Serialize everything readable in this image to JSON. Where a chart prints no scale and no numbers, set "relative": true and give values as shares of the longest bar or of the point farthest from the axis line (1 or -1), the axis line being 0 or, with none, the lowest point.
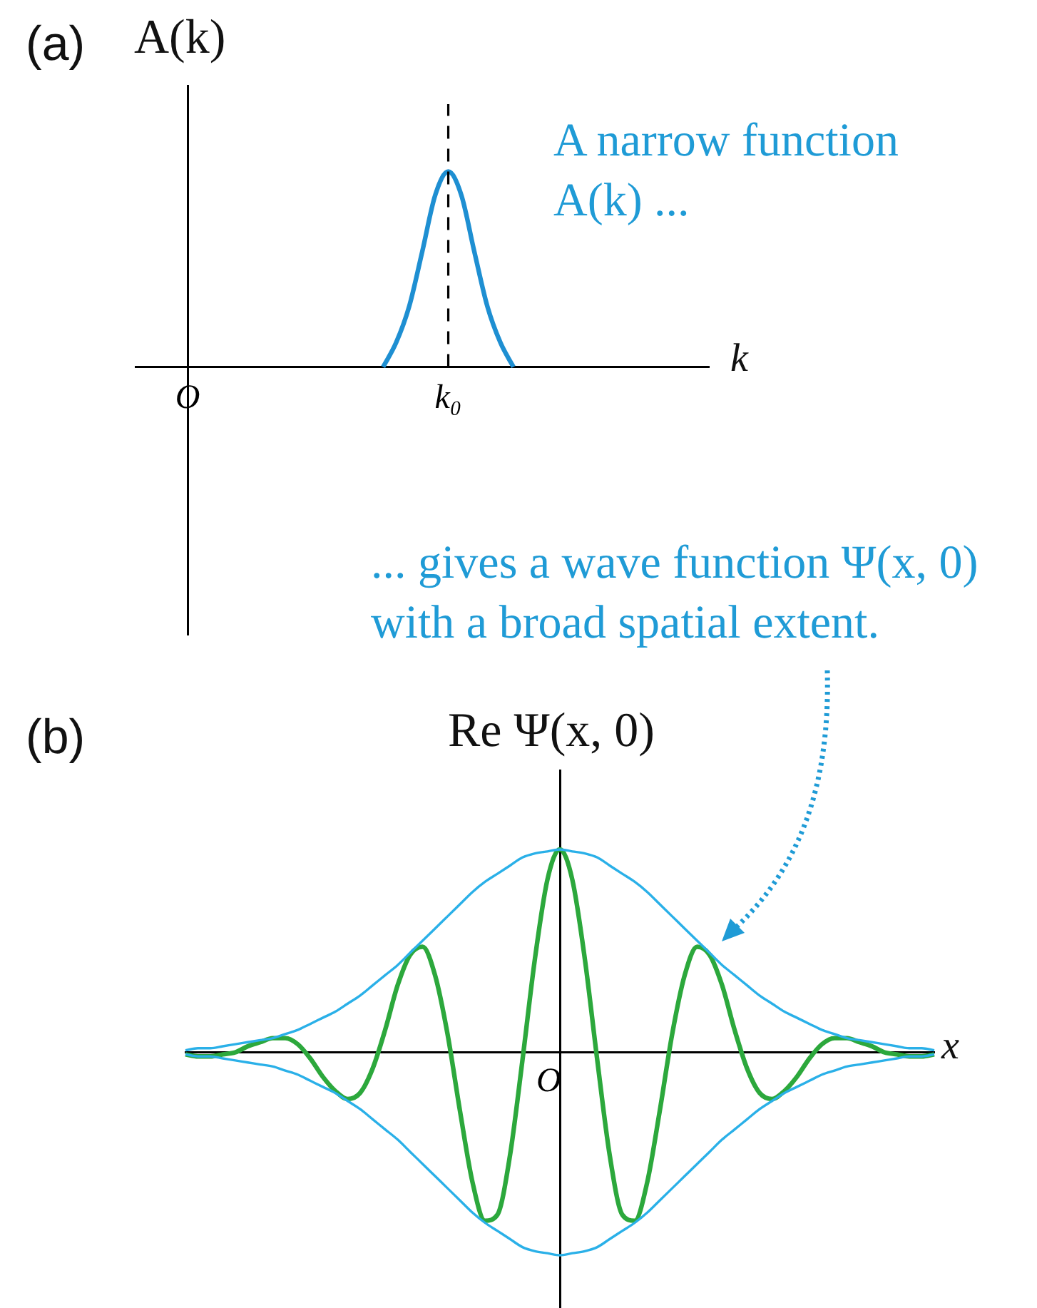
{
  "chart_data": [
    {
      "type": "line",
      "title": "(a)",
      "ylabel": "A(k)",
      "xlabel": "k",
      "relative": true,
      "legend": false,
      "grid": false,
      "marker": "none",
      "categories": [
        null,
        null,
        null,
        null,
        "O",
        null,
        null,
        null,
        null,
        null,
        null,
        null,
        null,
        null,
        null,
        null,
        null,
        null,
        null,
        null,
        null,
        null,
        null,
        null,
        "k₀",
        null,
        null,
        null,
        null,
        null,
        null,
        null,
        null,
        null,
        null,
        null,
        null,
        null,
        null,
        null,
        null,
        null,
        null,
        null,
        null
      ],
      "series": [
        {
          "color": "#1e8fd2",
          "values": [
            null,
            null,
            null,
            null,
            null,
            null,
            null,
            null,
            null,
            null,
            null,
            null,
            null,
            null,
            null,
            null,
            null,
            null,
            null,
            0,
            0.125,
            0.31,
            0.59,
            0.88,
            1,
            0.88,
            0.59,
            0.31,
            0.125,
            0,
            null,
            null,
            null,
            null,
            null,
            null,
            null,
            null,
            null,
            null,
            null,
            null,
            null,
            null,
            null
          ]
        }
      ],
      "ref_lines": [
        {
          "axis": "x",
          "value": "k₀",
          "color": "#000000",
          "line_style": "dashed"
        }
      ],
      "annotations": [
        "A narrow function A(k) ..."
      ]
    },
    {
      "type": "line",
      "title": "(b)",
      "ylabel": "Re Ψ(x, 0)",
      "xlabel": "x",
      "relative": true,
      "legend": false,
      "grid": false,
      "marker": "none",
      "categories": [
        null,
        null,
        null,
        null,
        null,
        null,
        null,
        null,
        null,
        null,
        null,
        null,
        null,
        null,
        null,
        null,
        null,
        null,
        null,
        null,
        null,
        null,
        null,
        null,
        null,
        null,
        null,
        null,
        null,
        null,
        null,
        null,
        null,
        null,
        null,
        null,
        null,
        null,
        null,
        null,
        null,
        null,
        null,
        null,
        null,
        null,
        null,
        null,
        null,
        null,
        null,
        null,
        null,
        null,
        null,
        null,
        null,
        null,
        null,
        null,
        null
      ],
      "series": [
        {
          "color": "#2ab0e8",
          "values": [
            0.01,
            0.02,
            0.02,
            0.03,
            0.04,
            0.05,
            0.06,
            0.07,
            0.09,
            0.11,
            0.14,
            0.17,
            0.2,
            0.24,
            0.28,
            0.33,
            0.38,
            0.43,
            0.49,
            0.55,
            0.61,
            0.67,
            0.73,
            0.79,
            0.84,
            0.88,
            0.92,
            0.96,
            0.98,
            0.99,
            1,
            0.99,
            0.98,
            0.96,
            0.92,
            0.88,
            0.84,
            0.79,
            0.73,
            0.67,
            0.61,
            0.55,
            0.49,
            0.43,
            0.38,
            0.33,
            0.28,
            0.24,
            0.2,
            0.17,
            0.14,
            0.11,
            0.09,
            0.07,
            0.06,
            0.05,
            0.04,
            0.03,
            0.02,
            0.02,
            0.01
          ]
        },
        {
          "color": "#2ab0e8",
          "values": [
            -0.01,
            -0.02,
            -0.02,
            -0.03,
            -0.04,
            -0.05,
            -0.06,
            -0.07,
            -0.09,
            -0.11,
            -0.14,
            -0.17,
            -0.2,
            -0.24,
            -0.28,
            -0.33,
            -0.38,
            -0.43,
            -0.49,
            -0.55,
            -0.61,
            -0.67,
            -0.73,
            -0.79,
            -0.84,
            -0.88,
            -0.92,
            -0.96,
            -0.98,
            -0.99,
            -1,
            -0.99,
            -0.98,
            -0.96,
            -0.92,
            -0.88,
            -0.84,
            -0.79,
            -0.73,
            -0.67,
            -0.61,
            -0.55,
            -0.49,
            -0.43,
            -0.38,
            -0.33,
            -0.28,
            -0.24,
            -0.2,
            -0.17,
            -0.14,
            -0.11,
            -0.09,
            -0.07,
            -0.06,
            -0.05,
            -0.04,
            -0.03,
            -0.02,
            -0.02,
            -0.01
          ]
        },
        {
          "color": "#2ca83c",
          "values": [
            -0.01,
            -0.02,
            -0.02,
            -0.01,
            0,
            0.03,
            0.05,
            0.07,
            0.07,
            0.04,
            -0.03,
            -0.12,
            -0.19,
            -0.23,
            -0.2,
            -0.08,
            0.11,
            0.33,
            0.48,
            0.52,
            0.38,
            0.09,
            -0.29,
            -0.64,
            -0.83,
            -0.8,
            -0.51,
            -0.04,
            0.46,
            0.85,
            1,
            0.85,
            0.46,
            -0.04,
            -0.51,
            -0.8,
            -0.83,
            -0.64,
            -0.29,
            0.09,
            0.38,
            0.52,
            0.48,
            0.33,
            0.11,
            -0.08,
            -0.2,
            -0.23,
            -0.19,
            -0.12,
            -0.03,
            0.04,
            0.07,
            0.07,
            0.05,
            0.03,
            0,
            -0.01,
            -0.02,
            -0.02,
            -0.01
          ]
        }
      ],
      "annotations": [
        "... gives a wave function Ψ(x, 0) with a broad spatial extent.",
        "O"
      ]
    }
  ]
}
